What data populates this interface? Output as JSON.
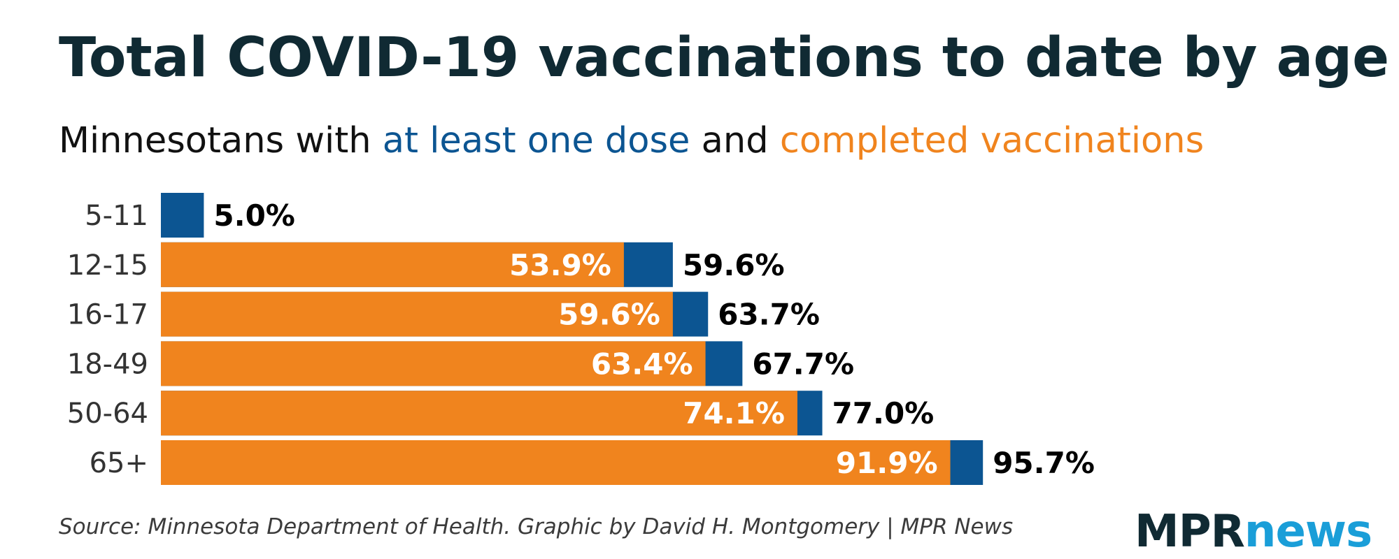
{
  "header": {
    "title": "Total COVID-19 vaccinations to date by age",
    "subtitle_prefix": "Minnesotans with ",
    "subtitle_blue": "at least one dose",
    "subtitle_mid": " and ",
    "subtitle_orange": "completed vaccinations"
  },
  "colors": {
    "at_least_one_dose": "#0c5592",
    "completed": "#f0841e",
    "title": "#102a33"
  },
  "chart_data": {
    "type": "bar",
    "orientation": "horizontal",
    "stacked_overlay": true,
    "categories": [
      "5-11",
      "12-15",
      "16-17",
      "18-49",
      "50-64",
      "65+"
    ],
    "series": [
      {
        "name": "at least one dose",
        "values": [
          5.0,
          59.6,
          63.7,
          67.7,
          77.0,
          95.7
        ]
      },
      {
        "name": "completed vaccinations",
        "values": [
          null,
          53.9,
          59.6,
          63.4,
          74.1,
          91.9
        ]
      }
    ],
    "labels": {
      "at_least_one_dose": [
        "5.0%",
        "59.6%",
        "63.7%",
        "67.7%",
        "77.0%",
        "95.7%"
      ],
      "completed": [
        "",
        "53.9%",
        "59.6%",
        "63.4%",
        "74.1%",
        "91.9%"
      ]
    },
    "xlim": [
      0,
      100
    ],
    "grid": false,
    "legend": "in-subtitle"
  },
  "footer": {
    "source": "Source: Minnesota Department of Health. Graphic by David H. Montgomery | MPR News",
    "logo_mpr": "MPR",
    "logo_news": "news"
  }
}
